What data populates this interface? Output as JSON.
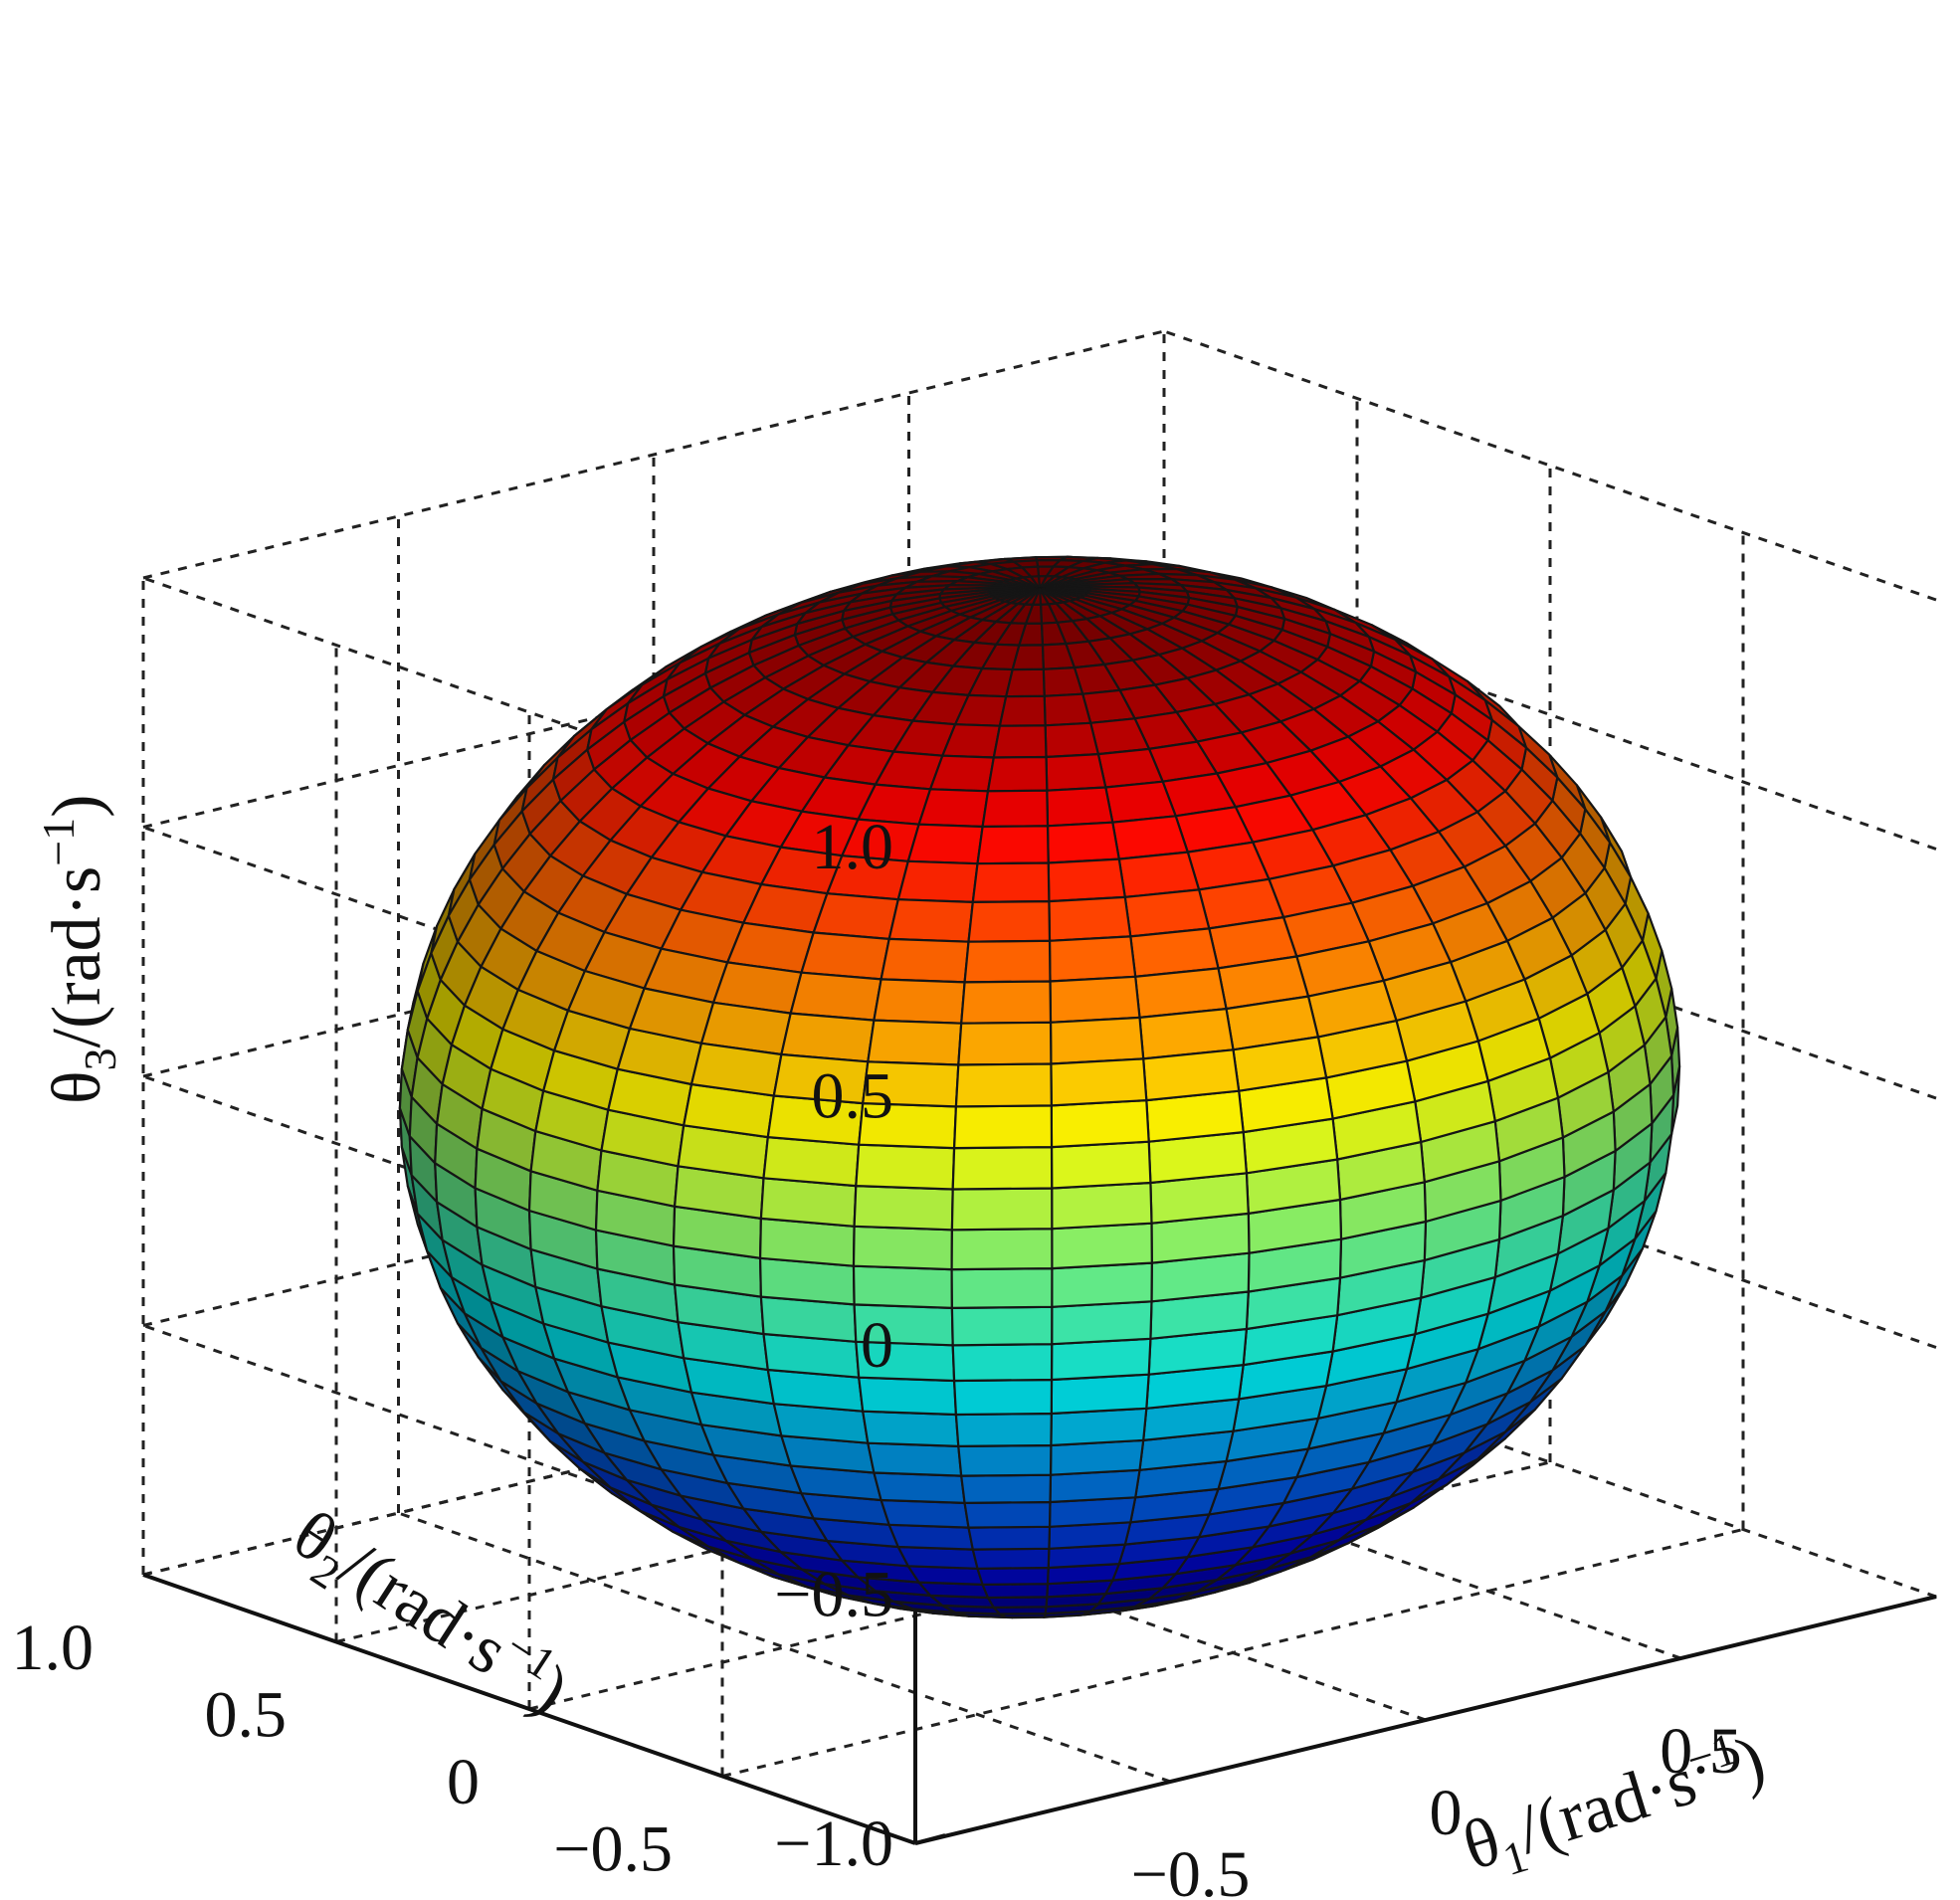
{
  "chart_data": {
    "type": "surface3d",
    "surface": "unit sphere",
    "equation": "x^2 + y^2 + z^2 = 1",
    "radius": 1.0,
    "center": [
      0,
      0,
      0
    ],
    "mesh": {
      "latitude_bands": 40,
      "longitude_segments": 40
    },
    "colormap": "jet",
    "color_by": "z",
    "axes": {
      "x": {
        "label_symbol": "θ",
        "label_sub": "1",
        "label_unit": "/(rad·s",
        "label_sup": "−1",
        "label_close": ")",
        "range": [
          -1.0,
          1.0
        ],
        "ticks": [
          {
            "value": -0.5,
            "label": "−0.5"
          },
          {
            "value": 0,
            "label": "0"
          },
          {
            "value": 0.5,
            "label": "0.5"
          }
        ]
      },
      "y": {
        "label_symbol": "θ",
        "label_sub": "2",
        "label_unit": "/(rad·s",
        "label_sup": "−1",
        "label_close": ")",
        "range": [
          -1.0,
          1.0
        ],
        "ticks": [
          {
            "value": -0.5,
            "label": "−0.5"
          },
          {
            "value": 0,
            "label": "0"
          },
          {
            "value": 0.5,
            "label": "0.5"
          },
          {
            "value": 1.0,
            "label": "1.0"
          }
        ]
      },
      "z": {
        "label_symbol": "θ",
        "label_sub": "3",
        "label_unit": "/(rad·s",
        "label_sup": "−1",
        "label_close": ")",
        "range": [
          -1.0,
          1.0
        ],
        "ticks": [
          {
            "value": -1.0,
            "label": "−1.0"
          },
          {
            "value": -0.5,
            "label": "−0.5"
          },
          {
            "value": 0,
            "label": "0"
          },
          {
            "value": 0.5,
            "label": "0.5"
          },
          {
            "value": 1.0,
            "label": "1.0"
          }
        ]
      }
    },
    "grid": true,
    "grid_style": "dashed",
    "box": false
  }
}
